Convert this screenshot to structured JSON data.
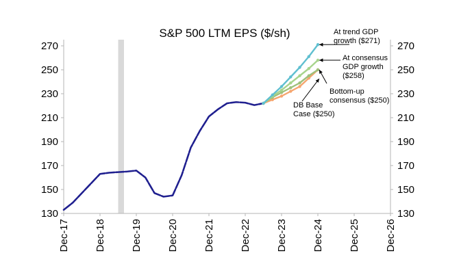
{
  "chart_data": {
    "type": "line",
    "title": "S&P 500 LTM EPS ($/sh)",
    "xlabel": "",
    "ylabel": "",
    "x_ticks": [
      "Dec-17",
      "Dec-18",
      "Dec-19",
      "Dec-20",
      "Dec-21",
      "Dec-22",
      "Dec-23",
      "Dec-24",
      "Dec-25",
      "Dec-26"
    ],
    "xlim": [
      2017.92,
      2026.92
    ],
    "ylim": [
      130,
      280
    ],
    "y_ticks": [
      130,
      150,
      170,
      190,
      210,
      230,
      250,
      270
    ],
    "grid": false,
    "legend": "none",
    "recession_band": {
      "start": 2019.42,
      "end": 2019.58,
      "color": "#d9d9d9"
    },
    "series": [
      {
        "color": "#1f1f8f",
        "style": "dashed",
        "points": [
          [
            2017.92,
            133
          ],
          [
            2018.17,
            139
          ],
          [
            2018.42,
            147
          ],
          [
            2018.67,
            155
          ],
          [
            2018.92,
            163
          ],
          [
            2019.17,
            164
          ],
          [
            2019.42,
            164.5
          ],
          [
            2019.67,
            165
          ],
          [
            2019.92,
            165.8
          ],
          [
            2020.17,
            160
          ],
          [
            2020.42,
            147
          ],
          [
            2020.67,
            144
          ],
          [
            2020.92,
            145
          ],
          [
            2021.17,
            162
          ],
          [
            2021.42,
            185
          ],
          [
            2021.67,
            199
          ],
          [
            2021.92,
            211
          ],
          [
            2022.17,
            217
          ],
          [
            2022.42,
            222
          ],
          [
            2022.67,
            223
          ],
          [
            2022.92,
            222.5
          ],
          [
            2023.17,
            220.5
          ],
          [
            2023.42,
            222
          ]
        ]
      },
      {
        "color": "#f5a56e",
        "style": "solid",
        "annotation": "DB Base Case ($250)",
        "points": [
          [
            2023.42,
            222
          ],
          [
            2023.67,
            225
          ],
          [
            2023.92,
            228
          ],
          [
            2024.17,
            232
          ],
          [
            2024.42,
            236
          ],
          [
            2024.67,
            243
          ],
          [
            2024.92,
            250
          ]
        ]
      },
      {
        "color": "#9ec07a",
        "style": "solid",
        "annotation": "Bottom-up consensus ($250)",
        "points": [
          [
            2023.42,
            222
          ],
          [
            2023.67,
            227
          ],
          [
            2023.92,
            231
          ],
          [
            2024.17,
            235
          ],
          [
            2024.42,
            239
          ],
          [
            2024.67,
            245
          ],
          [
            2024.92,
            250
          ]
        ]
      },
      {
        "color": "#a7d48c",
        "style": "solid",
        "annotation": "At consensus GDP growth ($258)",
        "points": [
          [
            2023.42,
            222
          ],
          [
            2023.67,
            228
          ],
          [
            2023.92,
            233
          ],
          [
            2024.17,
            239
          ],
          [
            2024.42,
            245
          ],
          [
            2024.67,
            251
          ],
          [
            2024.92,
            258
          ]
        ]
      },
      {
        "color": "#5fbfd0",
        "style": "solid",
        "annotation": "At trend GDP growth ($271)",
        "points": [
          [
            2023.42,
            222
          ],
          [
            2023.67,
            229
          ],
          [
            2023.92,
            236
          ],
          [
            2024.17,
            244
          ],
          [
            2024.42,
            252
          ],
          [
            2024.67,
            261
          ],
          [
            2024.92,
            271
          ]
        ]
      }
    ],
    "annotations": [
      {
        "lines": [
          "At trend GDP",
          "growth ($271)"
        ],
        "target": [
          2024.92,
          271
        ]
      },
      {
        "lines": [
          "At consensus",
          "GDP growth",
          "($258)"
        ],
        "target": [
          2024.92,
          258
        ]
      },
      {
        "lines": [
          "Bottom-up",
          "consensus ($250)"
        ],
        "target": [
          2024.92,
          250
        ]
      },
      {
        "lines": [
          "DB Base",
          "Case ($250)"
        ],
        "target": [
          2024.92,
          246
        ]
      }
    ]
  }
}
